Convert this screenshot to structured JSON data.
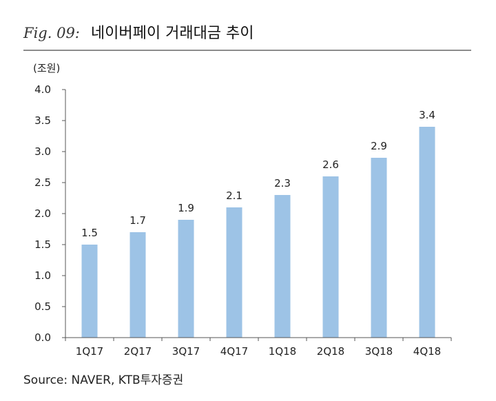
{
  "figure": {
    "label": "Fig. 09:",
    "title": "네이버페이 거래대금 추이",
    "source": "Source: NAVER, KTB투자증권"
  },
  "chart_data": {
    "type": "bar",
    "ylabel": "(조원)",
    "xlabel": "",
    "ylim": [
      0,
      4.0
    ],
    "yticks": [
      "0.0",
      "0.5",
      "1.0",
      "1.5",
      "2.0",
      "2.5",
      "3.0",
      "3.5",
      "4.0"
    ],
    "categories": [
      "1Q17",
      "2Q17",
      "3Q17",
      "4Q17",
      "1Q18",
      "2Q18",
      "3Q18",
      "4Q18"
    ],
    "values": [
      1.5,
      1.7,
      1.9,
      2.1,
      2.3,
      2.6,
      2.9,
      3.4
    ],
    "data_labels": [
      "1.5",
      "1.7",
      "1.9",
      "2.1",
      "2.3",
      "2.6",
      "2.9",
      "3.4"
    ],
    "bar_color": "#9dc3e6",
    "grid": false,
    "legend": "none"
  }
}
